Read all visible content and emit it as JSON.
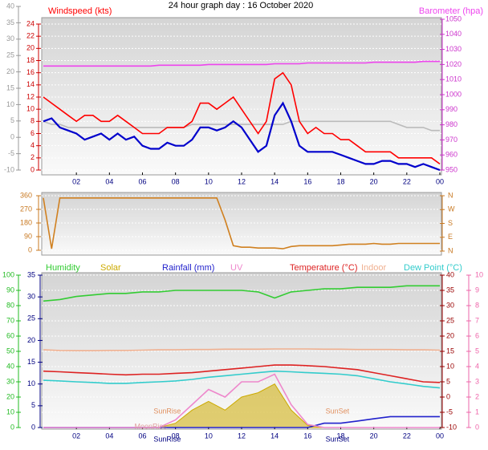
{
  "chart_data": [
    {
      "type": "line",
      "title": "24 hour graph day : 16 October 2020",
      "xlim": [
        0,
        24
      ],
      "xticks": [
        {
          "value": 2,
          "label": "02"
        },
        {
          "value": 4,
          "label": "04"
        },
        {
          "value": 6,
          "label": "06"
        },
        {
          "value": 8,
          "label": "08"
        },
        10,
        12,
        14,
        16,
        18,
        20,
        22,
        {
          "value": 24,
          "label": "00"
        }
      ],
      "ylim": [
        0,
        24
      ],
      "yticks": [
        0,
        2,
        4,
        6,
        8,
        10,
        12,
        14,
        16,
        18,
        20,
        22,
        24
      ],
      "ycolor": "#cc0000",
      "y2lim": [
        950,
        1050
      ],
      "y2ticks": [
        950,
        960,
        970,
        980,
        990,
        1000,
        1010,
        1020,
        1030,
        1040,
        1050
      ],
      "y2color": "#cc33cc",
      "y3lim": [
        -10,
        40
      ],
      "y3ticks": [
        -10,
        -5,
        0,
        5,
        10,
        15,
        20,
        25,
        30,
        35,
        40
      ],
      "y3color": "#999999",
      "grid": true,
      "x": [
        0,
        0.5,
        1,
        1.5,
        2,
        2.5,
        3,
        3.5,
        4,
        4.5,
        5,
        5.5,
        6,
        6.5,
        7,
        7.5,
        8,
        8.5,
        9,
        9.5,
        10,
        10.5,
        11,
        11.5,
        12,
        12.5,
        13,
        13.5,
        14,
        14.5,
        15,
        15.5,
        16,
        16.5,
        17,
        17.5,
        18,
        18.5,
        19,
        19.5,
        20,
        20.5,
        21,
        21.5,
        22,
        22.5,
        23,
        23.5,
        24
      ],
      "series": [
        {
          "color": "#bbbbbb",
          "values": [
            8,
            7.5,
            7.5,
            7,
            7,
            7,
            7,
            7,
            7,
            7,
            7,
            7,
            7,
            7,
            7,
            7,
            7,
            7,
            7.5,
            7.5,
            7.5,
            7.5,
            7.5,
            7.5,
            7.5,
            7.5,
            7.5,
            7.5,
            7.5,
            7.5,
            8,
            8,
            8,
            8,
            8,
            8,
            8,
            8,
            8,
            8,
            8,
            8,
            8,
            7.5,
            7,
            7,
            7,
            6.5,
            6.5
          ]
        },
        {
          "name": "Windspeed (kts)",
          "color": "#ff0000",
          "values": [
            12,
            11,
            10,
            9,
            8,
            9,
            9,
            8,
            8,
            9,
            8,
            7,
            6,
            6,
            6,
            7,
            7,
            7,
            8,
            11,
            11,
            10,
            11,
            12,
            10,
            8,
            6,
            8,
            15,
            16,
            14,
            8,
            6,
            7,
            6,
            6,
            5,
            5,
            4,
            3,
            3,
            3,
            3,
            2,
            2,
            2,
            2,
            2,
            1
          ]
        },
        {
          "color": "#0000cc",
          "values": [
            8,
            8.5,
            7,
            6.5,
            6,
            5,
            5.5,
            6,
            5,
            6,
            5,
            5.5,
            4,
            3.5,
            3.5,
            4.5,
            4,
            4,
            5,
            7,
            7,
            6.5,
            7,
            8,
            7,
            5,
            3,
            4,
            9,
            11,
            8,
            4,
            3,
            3,
            3,
            3,
            2.5,
            2,
            1.5,
            1,
            1,
            1.5,
            1.5,
            1,
            1,
            0.5,
            1,
            0.5,
            0
          ]
        },
        {
          "name": "Barometer (hpa)",
          "color": "#ee44ee",
          "axis": "y2",
          "values": [
            1019,
            1019,
            1019,
            1019,
            1019,
            1019,
            1019,
            1019,
            1019,
            1019,
            1019,
            1019,
            1019,
            1019,
            1019.5,
            1019.5,
            1019.5,
            1019.5,
            1019.5,
            1019.5,
            1020,
            1020,
            1020,
            1020,
            1020,
            1020,
            1020,
            1020,
            1020.5,
            1020.5,
            1020.5,
            1020.5,
            1021,
            1021,
            1021,
            1021,
            1021,
            1021,
            1021,
            1021,
            1021.5,
            1021.5,
            1021.5,
            1021.5,
            1021.5,
            1021.5,
            1022,
            1022,
            1022
          ]
        }
      ]
    },
    {
      "type": "line",
      "xlim": [
        0,
        24
      ],
      "ylim": [
        0,
        360
      ],
      "yticks": [
        0,
        90,
        180,
        270,
        360
      ],
      "ycolor": "#c87820",
      "y2lim": [
        0,
        360
      ],
      "y2ticks": [
        {
          "value": 0,
          "label": "N"
        },
        {
          "value": 90,
          "label": "E"
        },
        {
          "value": 180,
          "label": "S"
        },
        {
          "value": 270,
          "label": "W"
        },
        {
          "value": 360,
          "label": "N"
        }
      ],
      "y2color": "#c87820",
      "grid": true,
      "x": [
        0,
        0.5,
        1,
        1.5,
        2,
        2.5,
        3,
        3.5,
        4,
        4.5,
        5,
        5.5,
        6,
        6.5,
        7,
        7.5,
        8,
        8.5,
        9,
        9.5,
        10,
        10.5,
        11,
        11.5,
        12,
        12.5,
        13,
        13.5,
        14,
        14.5,
        15,
        15.5,
        16,
        16.5,
        17,
        17.5,
        18,
        18.5,
        19,
        19.5,
        20,
        20.5,
        21,
        21.5,
        22,
        22.5,
        23,
        23.5,
        24
      ],
      "series": [
        {
          "color": "#d08020",
          "values": [
            345,
            10,
            345,
            345,
            345,
            345,
            345,
            345,
            345,
            345,
            345,
            345,
            345,
            345,
            345,
            345,
            345,
            345,
            345,
            345,
            345,
            345,
            200,
            30,
            20,
            20,
            15,
            15,
            15,
            10,
            25,
            30,
            30,
            30,
            30,
            30,
            35,
            40,
            40,
            40,
            45,
            40,
            40,
            45,
            45,
            45,
            45,
            45,
            45
          ]
        }
      ]
    },
    {
      "type": "line",
      "xlim": [
        0,
        24
      ],
      "xticks": [
        {
          "value": 2,
          "label": "02"
        },
        {
          "value": 4,
          "label": "04"
        },
        {
          "value": 6,
          "label": "06"
        },
        {
          "value": 8,
          "label": "08"
        },
        10,
        12,
        14,
        16,
        18,
        20,
        22,
        {
          "value": 24,
          "label": "00"
        }
      ],
      "ylim": [
        0,
        100
      ],
      "yticks": [
        0,
        10,
        20,
        30,
        40,
        50,
        60,
        70,
        80,
        90,
        100
      ],
      "ycolor": "#22bb22",
      "y3lim": [
        0,
        35
      ],
      "y3ticks": [
        0,
        5,
        10,
        15,
        20,
        25,
        30,
        35
      ],
      "y3color": "#000080",
      "y2lim": [
        -10,
        40
      ],
      "y2ticks": [
        -10,
        -5,
        0,
        5,
        10,
        15,
        20,
        25,
        30,
        35,
        40
      ],
      "y2color": "#990000",
      "y4lim": [
        0,
        10
      ],
      "y4ticks": [
        0,
        1,
        2,
        3,
        4,
        5,
        6,
        7,
        8,
        9,
        10
      ],
      "y4color": "#ee66aa",
      "grid": true,
      "x": [
        0,
        1,
        2,
        3,
        4,
        5,
        6,
        7,
        8,
        9,
        10,
        11,
        12,
        13,
        14,
        15,
        16,
        17,
        18,
        19,
        20,
        21,
        22,
        23,
        24
      ],
      "series": [
        {
          "name": "Humidity",
          "color": "#33cc33",
          "values": [
            83,
            84,
            86,
            87,
            88,
            88,
            89,
            89,
            90,
            90,
            90,
            90,
            90,
            89,
            85,
            89,
            90,
            91,
            91,
            92,
            92,
            92,
            93,
            93,
            93
          ]
        },
        {
          "name": "Solar",
          "color": "#ccaa00",
          "axis": "y3",
          "fill": true,
          "values": [
            0,
            0,
            0,
            0,
            0,
            0,
            0,
            0,
            1,
            4,
            6,
            4,
            7,
            8,
            10,
            4,
            0.5,
            0,
            0,
            0,
            0,
            0,
            0,
            0,
            0
          ]
        },
        {
          "name": "Rainfall (mm)",
          "color": "#2222cc",
          "axis": "y3",
          "values": [
            0,
            0,
            0,
            0,
            0,
            0,
            0,
            0,
            0,
            0,
            0,
            0,
            0,
            0,
            0,
            0,
            0,
            1,
            1,
            1.5,
            2,
            2.5,
            2.5,
            2.5,
            2.5
          ]
        },
        {
          "name": "UV",
          "color": "#ee88cc",
          "axis": "y4",
          "values": [
            0,
            0,
            0,
            0,
            0,
            0,
            0,
            0,
            0.5,
            1.5,
            2.5,
            2,
            3,
            3,
            3.5,
            1.5,
            0.2,
            0,
            0,
            0,
            0,
            0,
            0,
            0,
            0
          ]
        },
        {
          "name": "Temperature (°C)",
          "color": "#dd2222",
          "axis": "y2",
          "values": [
            8.5,
            8.3,
            8,
            7.8,
            7.5,
            7.3,
            7.5,
            7.5,
            7.8,
            8,
            8.5,
            9,
            9.5,
            10,
            10.5,
            10.5,
            10.3,
            10,
            9.5,
            9,
            8,
            7,
            6,
            5,
            4.8
          ]
        },
        {
          "name": "Indoor",
          "color": "#f0b090",
          "axis": "y2",
          "values": [
            15.5,
            15.3,
            15.2,
            15.2,
            15.3,
            15.3,
            15.4,
            15.5,
            15.5,
            15.6,
            15.6,
            15.7,
            15.7,
            15.7,
            15.8,
            15.8,
            15.8,
            15.7,
            15.7,
            15.6,
            15.6,
            15.6,
            15.5,
            15.5,
            15.4
          ]
        },
        {
          "name": "Dew Point (°C)",
          "color": "#33cccc",
          "axis": "y2",
          "values": [
            5.5,
            5.3,
            5,
            4.8,
            4.5,
            4.5,
            4.8,
            5,
            5.3,
            5.8,
            6.5,
            7,
            7.5,
            8,
            8.5,
            8.3,
            8,
            7.8,
            7.5,
            7,
            6,
            5,
            4.3,
            3.5,
            3
          ]
        }
      ],
      "annotations": [
        {
          "text": "SunRise",
          "x": 7.5
        },
        {
          "text": "SunSet",
          "x": 17.8
        },
        {
          "text": "MoonRise",
          "x": 6.5
        }
      ],
      "x_markers": [
        {
          "text": "SunRise",
          "x": 7.5
        },
        {
          "text": "SunSet",
          "x": 17.8
        }
      ]
    }
  ]
}
